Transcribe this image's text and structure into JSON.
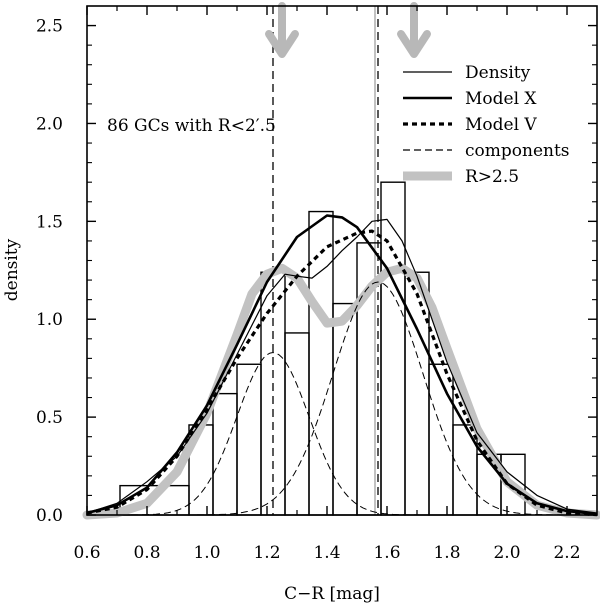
{
  "chart_data": {
    "type": "line",
    "xlabel": "C−R [mag]",
    "ylabel": "density",
    "xlim": [
      0.6,
      2.3
    ],
    "ylim": [
      0.0,
      2.6
    ],
    "x_ticks": [
      0.6,
      0.8,
      1.0,
      1.2,
      1.4,
      1.6,
      1.8,
      2.0,
      2.2
    ],
    "x_tick_labels": [
      "0.6",
      "0.8",
      "1.0",
      "1.2",
      "1.4",
      "1.6",
      "1.8",
      "2.0",
      "2.2"
    ],
    "y_ticks": [
      0.0,
      0.5,
      1.0,
      1.5,
      2.0,
      2.5
    ],
    "y_tick_labels": [
      "0.0",
      "0.5",
      "1.0",
      "1.5",
      "2.0",
      "2.5"
    ],
    "annotation": "86 GCs with R<2′.5",
    "legend": {
      "placement": "top-right",
      "entries": [
        {
          "label": "Density",
          "style": "thin"
        },
        {
          "label": "Model X",
          "style": "thick"
        },
        {
          "label": "Model V",
          "style": "dotted"
        },
        {
          "label": "components",
          "style": "dashed"
        },
        {
          "label": "R>2.5",
          "style": "gray"
        }
      ]
    },
    "histogram": [
      {
        "x0": 0.71,
        "x1": 0.94,
        "h": 0.15
      },
      {
        "x0": 0.94,
        "x1": 1.02,
        "h": 0.46
      },
      {
        "x0": 1.02,
        "x1": 1.1,
        "h": 0.62
      },
      {
        "x0": 1.1,
        "x1": 1.18,
        "h": 0.77
      },
      {
        "x0": 1.18,
        "x1": 1.26,
        "h": 1.24
      },
      {
        "x0": 1.26,
        "x1": 1.34,
        "h": 0.93
      },
      {
        "x0": 1.34,
        "x1": 1.42,
        "h": 1.55
      },
      {
        "x0": 1.42,
        "x1": 1.5,
        "h": 1.08
      },
      {
        "x0": 1.5,
        "x1": 1.58,
        "h": 1.39
      },
      {
        "x0": 1.58,
        "x1": 1.66,
        "h": 1.7
      },
      {
        "x0": 1.66,
        "x1": 1.74,
        "h": 1.24
      },
      {
        "x0": 1.74,
        "x1": 1.82,
        "h": 0.77
      },
      {
        "x0": 1.82,
        "x1": 1.9,
        "h": 0.46
      },
      {
        "x0": 1.9,
        "x1": 1.98,
        "h": 0.31
      },
      {
        "x0": 1.98,
        "x1": 2.06,
        "h": 0.31
      }
    ],
    "vertical_lines": {
      "dashed": [
        1.22,
        1.57
      ],
      "gray": [
        1.56
      ]
    },
    "arrows_at": [
      1.25,
      1.69
    ],
    "series": [
      {
        "name": "Density",
        "style": "thin",
        "x": [
          0.6,
          0.7,
          0.8,
          0.9,
          1.0,
          1.1,
          1.2,
          1.26,
          1.3,
          1.35,
          1.4,
          1.45,
          1.5,
          1.55,
          1.6,
          1.65,
          1.7,
          1.8,
          1.9,
          2.0,
          2.1,
          2.2,
          2.3
        ],
        "y": [
          0.01,
          0.06,
          0.17,
          0.3,
          0.52,
          0.82,
          1.12,
          1.23,
          1.22,
          1.21,
          1.27,
          1.35,
          1.42,
          1.5,
          1.51,
          1.4,
          1.22,
          0.78,
          0.42,
          0.22,
          0.1,
          0.03,
          0.01
        ]
      },
      {
        "name": "Model X",
        "style": "thick",
        "x": [
          0.6,
          0.7,
          0.8,
          0.9,
          1.0,
          1.1,
          1.2,
          1.3,
          1.4,
          1.45,
          1.5,
          1.6,
          1.7,
          1.8,
          1.9,
          2.0,
          2.1,
          2.2,
          2.3
        ],
        "y": [
          0.01,
          0.05,
          0.14,
          0.32,
          0.56,
          0.87,
          1.19,
          1.42,
          1.53,
          1.52,
          1.47,
          1.26,
          0.95,
          0.62,
          0.35,
          0.16,
          0.06,
          0.02,
          0.005
        ]
      },
      {
        "name": "Model V",
        "style": "dotted",
        "x": [
          0.6,
          0.7,
          0.8,
          0.9,
          1.0,
          1.1,
          1.2,
          1.3,
          1.4,
          1.5,
          1.55,
          1.6,
          1.7,
          1.8,
          1.9,
          2.0,
          2.1,
          2.2,
          2.3
        ],
        "y": [
          0.01,
          0.04,
          0.13,
          0.3,
          0.54,
          0.8,
          1.03,
          1.22,
          1.37,
          1.44,
          1.45,
          1.4,
          1.13,
          0.72,
          0.38,
          0.16,
          0.05,
          0.01,
          0.002
        ]
      },
      {
        "name": "R>2.5",
        "style": "gray",
        "x": [
          0.6,
          0.7,
          0.8,
          0.9,
          1.0,
          1.1,
          1.15,
          1.2,
          1.25,
          1.3,
          1.35,
          1.4,
          1.45,
          1.5,
          1.55,
          1.6,
          1.65,
          1.7,
          1.75,
          1.8,
          1.9,
          2.0,
          2.1,
          2.2,
          2.3
        ],
        "y": [
          0.0,
          0.01,
          0.06,
          0.22,
          0.52,
          0.92,
          1.13,
          1.23,
          1.26,
          1.21,
          1.09,
          0.98,
          0.99,
          1.07,
          1.17,
          1.24,
          1.26,
          1.21,
          1.06,
          0.85,
          0.44,
          0.17,
          0.05,
          0.01,
          0.0
        ]
      }
    ],
    "components": [
      {
        "mu": 1.22,
        "sigma": 0.12,
        "amp": 0.83
      },
      {
        "mu": 1.57,
        "sigma": 0.15,
        "amp": 1.19
      }
    ]
  }
}
